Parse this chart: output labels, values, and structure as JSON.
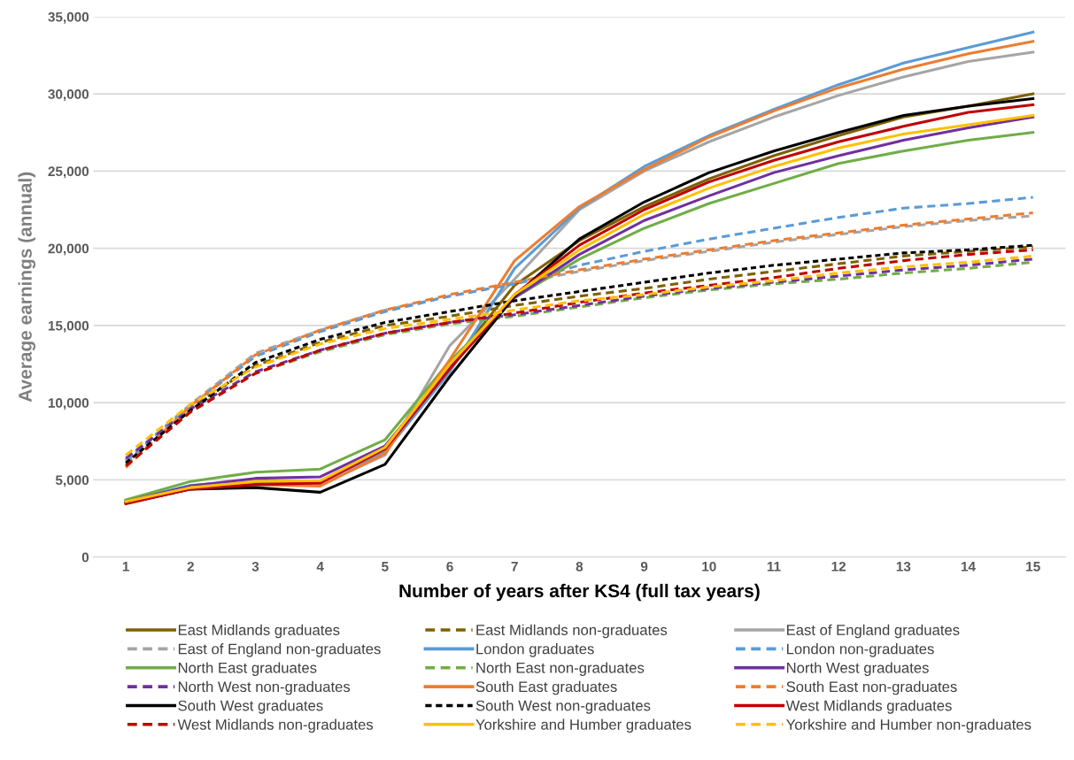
{
  "chart_data": {
    "type": "line",
    "xlabel": "Number of years after KS4 (full tax years)",
    "ylabel": "Average earnings (annual)",
    "categories": [
      "1",
      "2",
      "3",
      "4",
      "5",
      "6",
      "7",
      "8",
      "9",
      "10",
      "11",
      "12",
      "13",
      "14",
      "15"
    ],
    "ylim": [
      0,
      35000
    ],
    "yticks": [
      {
        "value": 0,
        "label": "0"
      },
      {
        "value": 5000,
        "label": "5,000"
      },
      {
        "value": 10000,
        "label": "10,000"
      },
      {
        "value": 15000,
        "label": "15,000"
      },
      {
        "value": 20000,
        "label": "20,000"
      },
      {
        "value": 25000,
        "label": "25,000"
      },
      {
        "value": 30000,
        "label": "30,000"
      },
      {
        "value": 35000,
        "label": "35,000"
      }
    ],
    "grid": "y",
    "legend": "bottom",
    "marker": "none",
    "series": [
      {
        "name": "East Midlands graduates",
        "color": "#7f6000",
        "line_style": "solid",
        "values": [
          3600,
          4550,
          4800,
          4900,
          7000,
          12400,
          17600,
          20500,
          22700,
          24500,
          26000,
          27300,
          28500,
          29200,
          30000
        ]
      },
      {
        "name": "East Midlands non-graduates",
        "color": "#7f6000",
        "line_style": "dashed",
        "values": [
          6300,
          9700,
          12400,
          13900,
          15000,
          15600,
          16300,
          16900,
          17400,
          18000,
          18500,
          19000,
          19500,
          19800,
          20100
        ]
      },
      {
        "name": "East of England graduates",
        "color": "#a5a5a5",
        "line_style": "solid",
        "values": [
          3600,
          4550,
          4700,
          4700,
          6600,
          13700,
          18000,
          22500,
          25000,
          26900,
          28500,
          29900,
          31100,
          32100,
          32700
        ]
      },
      {
        "name": "East of England non-graduates",
        "color": "#a5a5a5",
        "line_style": "dashed",
        "values": [
          6300,
          9900,
          13200,
          14700,
          16000,
          16900,
          17700,
          18500,
          19200,
          19800,
          20400,
          20900,
          21400,
          21800,
          22100
        ]
      },
      {
        "name": "London graduates",
        "color": "#5b9bd5",
        "line_style": "solid",
        "values": [
          3650,
          4650,
          4950,
          4900,
          6800,
          12000,
          18700,
          22600,
          25300,
          27300,
          29000,
          30600,
          32000,
          33000,
          34000
        ]
      },
      {
        "name": "London non-graduates",
        "color": "#5b9bd5",
        "line_style": "dashed",
        "values": [
          6200,
          9800,
          13000,
          14600,
          15900,
          16900,
          17700,
          18900,
          19800,
          20600,
          21300,
          22000,
          22600,
          22900,
          23300
        ]
      },
      {
        "name": "North East graduates",
        "color": "#70ad47",
        "line_style": "solid",
        "values": [
          3700,
          4900,
          5500,
          5700,
          7600,
          12700,
          16800,
          19300,
          21300,
          22900,
          24200,
          25500,
          26300,
          27000,
          27500
        ]
      },
      {
        "name": "North East non-graduates",
        "color": "#70ad47",
        "line_style": "dashed",
        "values": [
          6000,
          9500,
          11900,
          13300,
          14400,
          15100,
          15600,
          16200,
          16800,
          17300,
          17700,
          18000,
          18400,
          18700,
          19100
        ]
      },
      {
        "name": "North West graduates",
        "color": "#7030a0",
        "line_style": "solid",
        "values": [
          3600,
          4600,
          5100,
          5200,
          7200,
          12300,
          16800,
          19600,
          21800,
          23400,
          24900,
          26000,
          27000,
          27800,
          28500
        ]
      },
      {
        "name": "North West non-graduates",
        "color": "#7030a0",
        "line_style": "dashed",
        "values": [
          6400,
          9600,
          12000,
          13400,
          14500,
          15200,
          15700,
          16300,
          16900,
          17400,
          17800,
          18200,
          18600,
          18900,
          19300
        ]
      },
      {
        "name": "South East graduates",
        "color": "#ed7d31",
        "line_style": "solid",
        "values": [
          3550,
          4500,
          4700,
          4600,
          6700,
          12800,
          19200,
          22700,
          25100,
          27200,
          28900,
          30400,
          31600,
          32600,
          33400
        ]
      },
      {
        "name": "South East non-graduates",
        "color": "#ed7d31",
        "line_style": "dashed",
        "values": [
          5800,
          9800,
          13100,
          14700,
          16000,
          17000,
          17800,
          18600,
          19300,
          19900,
          20500,
          21000,
          21500,
          21900,
          22300
        ]
      },
      {
        "name": "South West graduates",
        "color": "#000000",
        "line_style": "solid",
        "values": [
          3500,
          4400,
          4500,
          4200,
          6000,
          11700,
          16900,
          20600,
          23000,
          24900,
          26300,
          27500,
          28600,
          29200,
          29700
        ]
      },
      {
        "name": "South West non-graduates",
        "color": "#000000",
        "line_style": "dotted",
        "values": [
          6100,
          9500,
          12600,
          14100,
          15200,
          15900,
          16600,
          17200,
          17800,
          18400,
          18900,
          19300,
          19700,
          19900,
          20200
        ]
      },
      {
        "name": "West Midlands graduates",
        "color": "#c00000",
        "line_style": "solid",
        "values": [
          3450,
          4400,
          4700,
          4800,
          7000,
          12200,
          17000,
          20200,
          22500,
          24300,
          25700,
          26900,
          27900,
          28800,
          29300
        ]
      },
      {
        "name": "West Midlands non-graduates",
        "color": "#c00000",
        "line_style": "dashed",
        "values": [
          5900,
          9400,
          11900,
          13400,
          14500,
          15200,
          15800,
          16500,
          17100,
          17600,
          18100,
          18700,
          19200,
          19600,
          19900
        ]
      },
      {
        "name": "Yorkshire and Humber graduates",
        "color": "#ffc000",
        "line_style": "solid",
        "values": [
          3600,
          4500,
          4900,
          4950,
          7100,
          12500,
          17000,
          19900,
          22200,
          23900,
          25300,
          26500,
          27400,
          28000,
          28600
        ]
      },
      {
        "name": "Yorkshire and Humber non-graduates",
        "color": "#ffc000",
        "line_style": "dashed",
        "values": [
          6600,
          9900,
          12300,
          13800,
          14800,
          15400,
          16000,
          16600,
          17000,
          17500,
          17900,
          18400,
          18800,
          19100,
          19500
        ]
      }
    ]
  }
}
